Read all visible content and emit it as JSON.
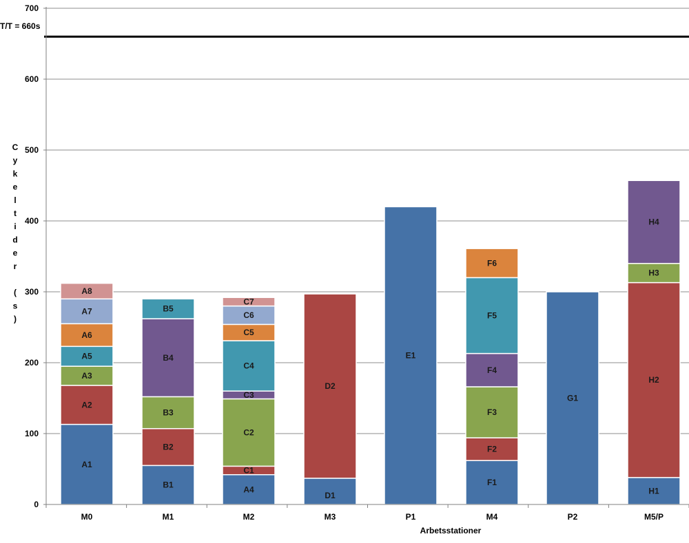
{
  "chart_data": {
    "type": "bar",
    "stacked": true,
    "xlabel": "Arbetsstationer",
    "ylabel": "Cykeltider (s)",
    "ylim": [
      0,
      700
    ],
    "yticks": [
      0,
      100,
      200,
      300,
      400,
      500,
      600,
      700
    ],
    "ytick_labels": [
      "0",
      "100",
      "200",
      "300",
      "400",
      "500",
      "600",
      "700"
    ],
    "grid": true,
    "legend": "none",
    "reference_line": {
      "value": 660,
      "label": "T/T = 660s"
    },
    "categories": [
      "M0",
      "M1",
      "M2",
      "M3",
      "P1",
      "M4",
      "P2",
      "M5/P"
    ],
    "series_colors": {
      "blue": "#4572A7",
      "red": "#AA4643",
      "green": "#89A54E",
      "purple": "#71588F",
      "teal": "#4198AF",
      "orange": "#DB843D",
      "lightblue": "#93A9CF",
      "pink": "#D19392"
    },
    "stacks": [
      {
        "category": "M0",
        "segments": [
          {
            "label": "A1",
            "value": 113,
            "color": "blue"
          },
          {
            "label": "A2",
            "value": 55,
            "color": "red"
          },
          {
            "label": "A3",
            "value": 27,
            "color": "green"
          },
          {
            "label": "A5",
            "value": 28,
            "color": "teal"
          },
          {
            "label": "A6",
            "value": 32,
            "color": "orange"
          },
          {
            "label": "A7",
            "value": 35,
            "color": "lightblue"
          },
          {
            "label": "A8",
            "value": 22,
            "color": "pink"
          }
        ]
      },
      {
        "category": "M1",
        "segments": [
          {
            "label": "B1",
            "value": 55,
            "color": "blue"
          },
          {
            "label": "B2",
            "value": 52,
            "color": "red"
          },
          {
            "label": "B3",
            "value": 45,
            "color": "green"
          },
          {
            "label": "B4",
            "value": 110,
            "color": "purple"
          },
          {
            "label": "B5",
            "value": 28,
            "color": "teal"
          }
        ]
      },
      {
        "category": "M2",
        "segments": [
          {
            "label": "A4",
            "value": 42,
            "color": "blue"
          },
          {
            "label": "C1",
            "value": 12,
            "color": "red"
          },
          {
            "label": "C2",
            "value": 95,
            "color": "green"
          },
          {
            "label": "C3",
            "value": 11,
            "color": "purple"
          },
          {
            "label": "C4",
            "value": 71,
            "color": "teal"
          },
          {
            "label": "C5",
            "value": 23,
            "color": "orange"
          },
          {
            "label": "C6",
            "value": 26,
            "color": "lightblue"
          },
          {
            "label": "C7",
            "value": 12,
            "color": "pink"
          }
        ]
      },
      {
        "category": "M3",
        "segments": [
          {
            "label": "D1",
            "value": 37,
            "color": "blue"
          },
          {
            "label": "D2",
            "value": 260,
            "color": "red"
          }
        ]
      },
      {
        "category": "P1",
        "segments": [
          {
            "label": "E1",
            "value": 420,
            "color": "blue"
          }
        ]
      },
      {
        "category": "M4",
        "segments": [
          {
            "label": "F1",
            "value": 62,
            "color": "blue"
          },
          {
            "label": "F2",
            "value": 32,
            "color": "red"
          },
          {
            "label": "F3",
            "value": 72,
            "color": "green"
          },
          {
            "label": "F4",
            "value": 47,
            "color": "purple"
          },
          {
            "label": "F5",
            "value": 107,
            "color": "teal"
          },
          {
            "label": "F6",
            "value": 41,
            "color": "orange"
          }
        ]
      },
      {
        "category": "P2",
        "segments": [
          {
            "label": "G1",
            "value": 300,
            "color": "blue"
          }
        ]
      },
      {
        "category": "M5/P",
        "segments": [
          {
            "label": "H1",
            "value": 38,
            "color": "blue"
          },
          {
            "label": "H2",
            "value": 275,
            "color": "red"
          },
          {
            "label": "H3",
            "value": 27,
            "color": "green"
          },
          {
            "label": "H4",
            "value": 117,
            "color": "purple"
          }
        ]
      }
    ]
  }
}
